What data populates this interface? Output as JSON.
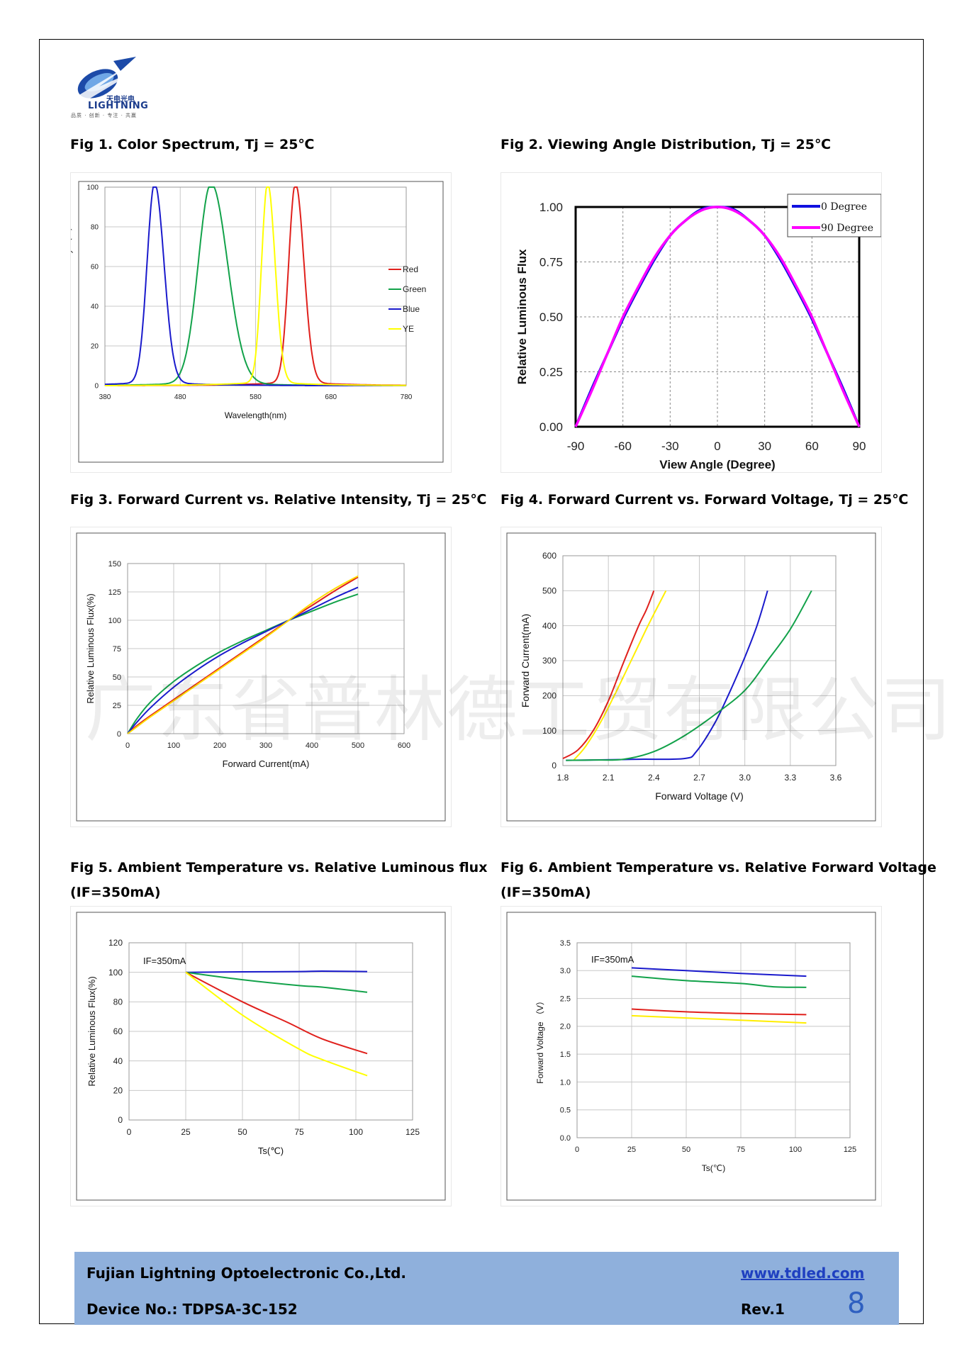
{
  "header": {
    "logo_cn": "天电光电",
    "logo_en": "LIGHTNING",
    "logo_tagline": "品质 · 创新 · 专注 · 共赢"
  },
  "watermark": "广东省普林德工贸有限公司",
  "figures": {
    "fig1": {
      "title": "Fig 1. Color Spectrum, Tj = 25℃"
    },
    "fig2": {
      "title": "Fig 2. Viewing Angle Distribution, Tj = 25℃"
    },
    "fig3": {
      "title": "Fig 3. Forward Current vs. Relative Intensity, Tj = 25℃"
    },
    "fig4": {
      "title": "Fig 4. Forward Current vs. Forward Voltage, Tj = 25℃"
    },
    "fig5": {
      "title_line1": "Fig 5. Ambient Temperature vs. Relative Luminous flux",
      "title_line2": "(IF=350mA)"
    },
    "fig6": {
      "title_line1": "Fig 6. Ambient Temperature vs. Relative Forward Voltage",
      "title_line2": "(IF=350mA)"
    }
  },
  "chart_data": [
    {
      "id": "fig1",
      "type": "line",
      "xlabel": "Wavelength(nm)",
      "ylabel": "Relative Emission Intensity （%）",
      "xlim": [
        380,
        780
      ],
      "ylim": [
        0,
        100
      ],
      "xticks": [
        380,
        480,
        580,
        680,
        780
      ],
      "yticks": [
        0,
        20,
        40,
        60,
        80,
        100
      ],
      "legend_position": "right",
      "series": [
        {
          "name": "Red",
          "color": "#e0201c",
          "peak": 633,
          "width": 9,
          "tail": 0.6
        },
        {
          "name": "Green",
          "color": "#12a24a",
          "peak": 521,
          "width": 17,
          "tail": 0.7
        },
        {
          "name": "Blue",
          "color": "#1a1acc",
          "peak": 446,
          "width": 10,
          "tail": 0.6
        },
        {
          "name": "YE",
          "color": "#ffff00",
          "peak": 596,
          "width": 8,
          "tail": 0.6
        }
      ]
    },
    {
      "id": "fig2",
      "type": "line",
      "xlabel": "View Angle (Degree)",
      "ylabel": "Relative Luminous Flux",
      "xlim": [
        -90,
        90
      ],
      "ylim": [
        0,
        1
      ],
      "xticks": [
        -90,
        -60,
        -30,
        0,
        30,
        60,
        90
      ],
      "ytick_labels": [
        "0.00",
        "0.25",
        "0.50",
        "0.75",
        "1.00"
      ],
      "yticks": [
        0,
        0.25,
        0.5,
        0.75,
        1
      ],
      "legend_position": "top-right",
      "series": [
        {
          "name": "0 Degree",
          "color": "#1010e0",
          "x": [
            -90,
            -80,
            -70,
            -60,
            -50,
            -40,
            -30,
            -20,
            -10,
            0,
            10,
            20,
            30,
            40,
            50,
            60,
            70,
            80,
            90
          ],
          "y": [
            0,
            0.17,
            0.33,
            0.49,
            0.63,
            0.76,
            0.87,
            0.94,
            0.99,
            1,
            0.99,
            0.94,
            0.87,
            0.76,
            0.63,
            0.49,
            0.33,
            0.17,
            0
          ]
        },
        {
          "name": "90 Degree",
          "color": "#ff00ff",
          "x": [
            -90,
            -80,
            -70,
            -60,
            -50,
            -40,
            -30,
            -20,
            -10,
            0,
            10,
            20,
            30,
            40,
            50,
            60,
            70,
            80,
            90
          ],
          "y": [
            0,
            0.16,
            0.33,
            0.5,
            0.64,
            0.77,
            0.87,
            0.94,
            0.985,
            1,
            0.985,
            0.94,
            0.87,
            0.77,
            0.64,
            0.5,
            0.33,
            0.16,
            0
          ]
        }
      ]
    },
    {
      "id": "fig3",
      "type": "line",
      "xlabel": "Forward Current(mA)",
      "ylabel": "Relative Luminous Flux(%)",
      "xlim": [
        0,
        600
      ],
      "ylim": [
        0,
        150
      ],
      "xticks": [
        0,
        100,
        200,
        300,
        400,
        500,
        600
      ],
      "yticks": [
        0,
        25,
        50,
        75,
        100,
        125,
        150
      ],
      "series": [
        {
          "name": "Red",
          "color": "#e0201c",
          "x": [
            0,
            20,
            50,
            100,
            150,
            200,
            250,
            300,
            350,
            400,
            450,
            500
          ],
          "y": [
            0,
            7,
            16,
            30,
            44,
            58,
            72,
            86,
            100,
            113,
            126,
            138
          ]
        },
        {
          "name": "Green",
          "color": "#12a24a",
          "x": [
            0,
            20,
            50,
            100,
            150,
            200,
            250,
            300,
            350,
            400,
            450,
            500
          ],
          "y": [
            0,
            13,
            28,
            46,
            60,
            72,
            82,
            91,
            100,
            108,
            116,
            123
          ]
        },
        {
          "name": "Blue",
          "color": "#1a1acc",
          "x": [
            0,
            20,
            50,
            100,
            150,
            200,
            250,
            300,
            350,
            400,
            450,
            500
          ],
          "y": [
            0,
            10,
            23,
            41,
            56,
            69,
            80,
            90,
            100,
            110,
            120,
            129
          ]
        },
        {
          "name": "YE",
          "color": "#ffdd00",
          "x": [
            0,
            20,
            50,
            100,
            150,
            200,
            250,
            300,
            350,
            400,
            450,
            500
          ],
          "y": [
            0,
            6,
            15,
            29,
            43,
            57,
            71,
            85,
            100,
            115,
            128,
            139
          ]
        }
      ]
    },
    {
      "id": "fig4",
      "type": "line",
      "xlabel": "Forward Voltage (V)",
      "ylabel": "Forward Current(mA)",
      "xlim": [
        1.8,
        3.6
      ],
      "ylim": [
        0,
        600
      ],
      "xticks": [
        1.8,
        2.1,
        2.4,
        2.7,
        3.0,
        3.3,
        3.6
      ],
      "xtick_labels": [
        "1.8",
        "2.1",
        "2.4",
        "2.7",
        "3.0",
        "3.3",
        "3.6"
      ],
      "yticks": [
        0,
        100,
        200,
        300,
        400,
        500,
        600
      ],
      "series": [
        {
          "name": "Red",
          "color": "#e0201c",
          "x": [
            1.8,
            1.9,
            2.0,
            2.1,
            2.2,
            2.3,
            2.35,
            2.4
          ],
          "y": [
            20,
            45,
            100,
            185,
            295,
            400,
            445,
            500
          ]
        },
        {
          "name": "YE",
          "color": "#ffee00",
          "x": [
            1.87,
            1.95,
            2.05,
            2.15,
            2.25,
            2.35,
            2.42,
            2.48
          ],
          "y": [
            15,
            55,
            125,
            210,
            300,
            390,
            450,
            500
          ]
        },
        {
          "name": "Blue",
          "color": "#1a1acc",
          "x": [
            1.82,
            2.0,
            2.3,
            2.6,
            2.68,
            2.8,
            2.9,
            3.0,
            3.08,
            3.15
          ],
          "y": [
            15,
            16,
            18,
            20,
            40,
            120,
            210,
            310,
            400,
            500
          ]
        },
        {
          "name": "Green",
          "color": "#12a24a",
          "x": [
            1.82,
            2.0,
            2.2,
            2.4,
            2.6,
            2.8,
            3.0,
            3.15,
            3.3,
            3.44
          ],
          "y": [
            15,
            16,
            18,
            40,
            85,
            145,
            215,
            300,
            390,
            500
          ]
        }
      ]
    },
    {
      "id": "fig5",
      "type": "line",
      "xlabel": "Ts(℃)",
      "ylabel": "Relative Luminous Flux(%)",
      "annotation": "IF=350mA",
      "xlim": [
        0,
        125
      ],
      "ylim": [
        0,
        120
      ],
      "xticks": [
        0,
        25,
        50,
        75,
        100,
        125
      ],
      "yticks": [
        0,
        20,
        40,
        60,
        80,
        100,
        120
      ],
      "series": [
        {
          "name": "Blue",
          "color": "#1a1acc",
          "x": [
            25,
            50,
            75,
            85,
            105
          ],
          "y": [
            100,
            100.3,
            100.5,
            100.8,
            100.5
          ]
        },
        {
          "name": "Green",
          "color": "#12a24a",
          "x": [
            25,
            50,
            75,
            85,
            105
          ],
          "y": [
            100,
            95,
            91,
            90,
            86.5
          ]
        },
        {
          "name": "Red",
          "color": "#e0201c",
          "x": [
            25,
            50,
            70,
            85,
            105
          ],
          "y": [
            100,
            80,
            66,
            55,
            45
          ]
        },
        {
          "name": "YE",
          "color": "#ffff00",
          "x": [
            25,
            50,
            75,
            85,
            105
          ],
          "y": [
            100,
            71,
            48,
            41,
            30
          ]
        }
      ]
    },
    {
      "id": "fig6",
      "type": "line",
      "xlabel": "Ts(℃)",
      "ylabel": "Forward Voltage （V）",
      "annotation": "IF=350mA",
      "xlim": [
        0,
        125
      ],
      "ylim": [
        0,
        3.5
      ],
      "xticks": [
        0,
        25,
        50,
        75,
        100,
        125
      ],
      "yticks": [
        0,
        0.5,
        1.0,
        1.5,
        2.0,
        2.5,
        3.0,
        3.5
      ],
      "ytick_labels": [
        "0.0",
        "0.5",
        "1.0",
        "1.5",
        "2.0",
        "2.5",
        "3.0",
        "3.5"
      ],
      "series": [
        {
          "name": "Blue",
          "color": "#1a1acc",
          "x": [
            25,
            50,
            75,
            105
          ],
          "y": [
            3.05,
            3.0,
            2.95,
            2.9
          ]
        },
        {
          "name": "Green",
          "color": "#12a24a",
          "x": [
            25,
            50,
            75,
            90,
            105
          ],
          "y": [
            2.9,
            2.82,
            2.77,
            2.71,
            2.7
          ]
        },
        {
          "name": "Red",
          "color": "#e0201c",
          "x": [
            25,
            50,
            75,
            105
          ],
          "y": [
            2.31,
            2.26,
            2.23,
            2.21
          ]
        },
        {
          "name": "YE",
          "color": "#ffee00",
          "x": [
            25,
            50,
            75,
            105
          ],
          "y": [
            2.19,
            2.15,
            2.11,
            2.06
          ]
        }
      ]
    }
  ],
  "footer": {
    "company": "Fujian Lightning Optoelectronic Co.,Ltd.",
    "device": "Device No.: TDPSA-3C-152",
    "url": "www.tdled.com",
    "rev": "Rev.1",
    "page_number": "8"
  }
}
